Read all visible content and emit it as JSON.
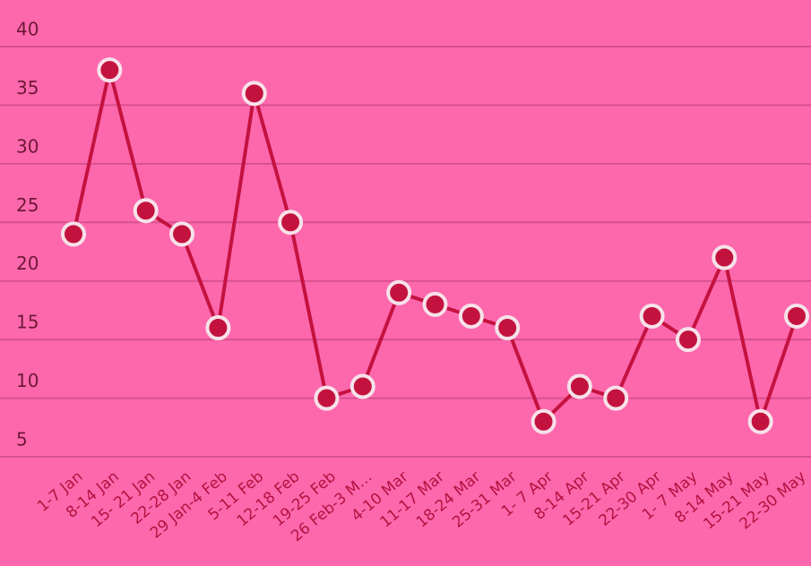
{
  "chart_data": {
    "type": "line",
    "categories": [
      "1-7 Jan",
      "8-14 Jan",
      "15- 21 Jan",
      "22-28 Jan",
      "29 Jan-4 Feb",
      "5-11 Feb",
      "12-18 Feb",
      "19-25 Feb",
      "26 Feb-3 M…",
      "4-10 Mar",
      "11-17 Mar",
      "18-24 Mar",
      "25-31 Mar",
      "1- 7 Apr",
      "8-14 Apr",
      "15-21 Apr",
      "22-30 Apr",
      "1- 7 May",
      "8-14 May",
      "15-21 May",
      "22-30 May"
    ],
    "series": [
      {
        "color": "#c4123f",
        "values": [
          24,
          38,
          26,
          24,
          16,
          36,
          25,
          10,
          11,
          19,
          18,
          17,
          16,
          8,
          11,
          10,
          17,
          15,
          22,
          8,
          17
        ]
      }
    ],
    "ylim": [
      5,
      40
    ],
    "yticks": [
      5,
      10,
      15,
      20,
      25,
      30,
      35,
      40
    ],
    "grid": true
  }
}
